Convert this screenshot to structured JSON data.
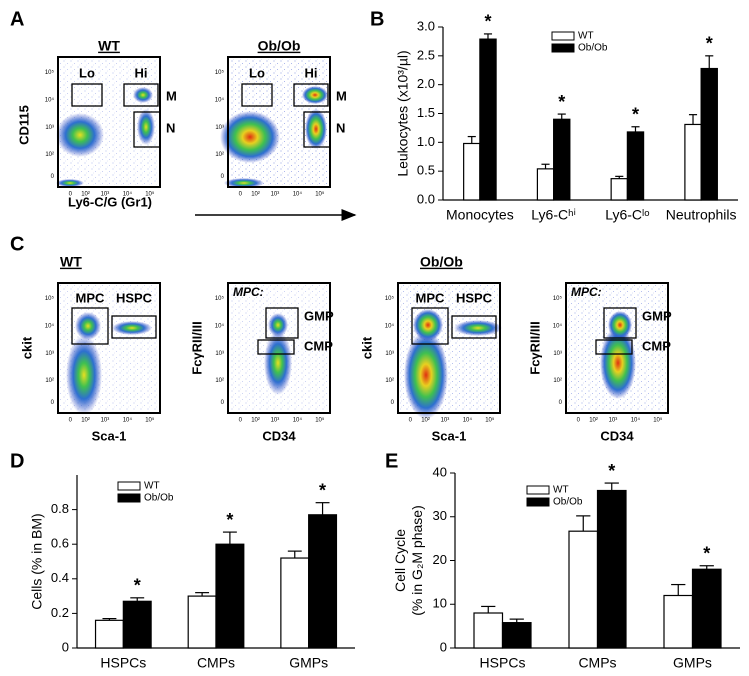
{
  "panel_labels": [
    "A",
    "B",
    "C",
    "D",
    "E"
  ],
  "flow_ticks": {
    "x": [
      "0",
      "10²",
      "10³",
      "10⁴",
      "10⁵"
    ],
    "y": [
      "0",
      "10²",
      "10³",
      "10⁴",
      "10⁵"
    ]
  },
  "panel_a": {
    "y_label": "CD115",
    "x_label": "Ly6-C/G (Gr1)",
    "plots": [
      {
        "title": "WT",
        "gates": [
          "Lo",
          "Hi",
          "M",
          "N"
        ]
      },
      {
        "title": "Ob/Ob",
        "gates": [
          "Lo",
          "Hi",
          "M",
          "N"
        ]
      }
    ]
  },
  "panel_c": {
    "groups": [
      {
        "title": "WT",
        "plots": [
          {
            "y_label": "ckit",
            "x_label": "Sca-1",
            "gates": [
              "MPC",
              "HSPC"
            ]
          },
          {
            "y_label": "FcγRII/III",
            "x_label": "CD34",
            "header": "MPC:",
            "gates": [
              "GMP",
              "CMP"
            ]
          }
        ]
      },
      {
        "title": "Ob/Ob",
        "plots": [
          {
            "y_label": "ckit",
            "x_label": "Sca-1",
            "gates": [
              "MPC",
              "HSPC"
            ]
          },
          {
            "y_label": "FcγRII/III",
            "x_label": "CD34",
            "header": "MPC:",
            "gates": [
              "GMP",
              "CMP"
            ]
          }
        ]
      }
    ]
  },
  "chart_data": [
    {
      "type": "bar",
      "ylabel": [
        "Leukocytes (x10³/µl)"
      ],
      "categories": [
        "Monocytes",
        "Ly6-Cʰⁱ",
        "Ly6-Cˡᵒ",
        "Neutrophils"
      ],
      "series": [
        {
          "name": "WT",
          "color": "#ffffff",
          "values": [
            0.98,
            0.54,
            0.37,
            1.31
          ],
          "errors": [
            0.12,
            0.08,
            0.04,
            0.17
          ],
          "significance": [
            null,
            null,
            null,
            null
          ]
        },
        {
          "name": "Ob/Ob",
          "color": "#000000",
          "values": [
            2.79,
            1.4,
            1.18,
            2.28
          ],
          "errors": [
            0.09,
            0.09,
            0.09,
            0.22
          ],
          "significance": [
            "*",
            "*",
            "*",
            "*"
          ]
        }
      ],
      "ylim": [
        0,
        3
      ],
      "yticks": [
        {
          "value": 0,
          "label": "0.0"
        },
        0.5,
        {
          "value": 1,
          "label": "1.0"
        },
        1.5,
        {
          "value": 2,
          "label": "2.0"
        },
        2.5,
        {
          "value": 3,
          "label": "3.0"
        }
      ]
    },
    {
      "type": "bar",
      "ylabel": [
        "Cells (% in BM)"
      ],
      "categories": [
        "HSPCs",
        "CMPs",
        "GMPs"
      ],
      "series": [
        {
          "name": "WT",
          "color": "#ffffff",
          "values": [
            0.16,
            0.3,
            0.52
          ],
          "errors": [
            0.01,
            0.02,
            0.04
          ],
          "significance": [
            null,
            null,
            null
          ]
        },
        {
          "name": "Ob/Ob",
          "color": "#000000",
          "values": [
            0.27,
            0.6,
            0.77
          ],
          "errors": [
            0.02,
            0.07,
            0.07
          ],
          "significance": [
            "*",
            "*",
            "*"
          ]
        }
      ],
      "ylim": [
        0,
        1
      ],
      "yticks": [
        0,
        0.2,
        0.4,
        0.6,
        0.8
      ]
    },
    {
      "type": "bar",
      "ylabel": [
        "Cell Cycle",
        "(% in G₂M phase)"
      ],
      "categories": [
        "HSPCs",
        "CMPs",
        "GMPs"
      ],
      "series": [
        {
          "name": "WT",
          "color": "#ffffff",
          "values": [
            8,
            26.7,
            12
          ],
          "errors": [
            1.5,
            3.5,
            2.5
          ],
          "significance": [
            null,
            null,
            null
          ]
        },
        {
          "name": "Ob/Ob",
          "color": "#000000",
          "values": [
            5.8,
            36,
            18
          ],
          "errors": [
            0.8,
            1.7,
            0.8
          ],
          "significance": [
            null,
            "*",
            "*"
          ]
        }
      ],
      "ylim": [
        0,
        40
      ],
      "yticks": [
        0,
        10,
        20,
        30,
        40
      ]
    }
  ]
}
